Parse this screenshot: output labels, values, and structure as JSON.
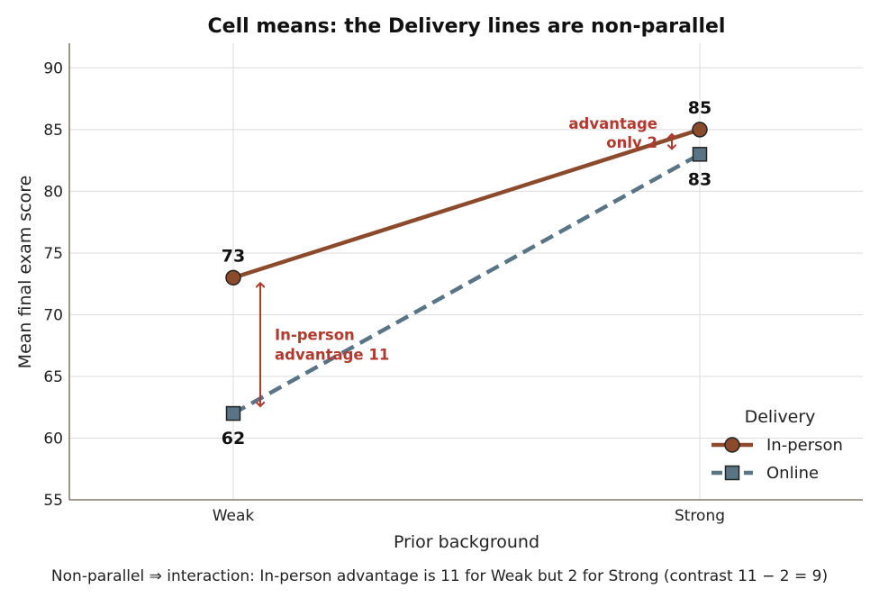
{
  "chart_data": {
    "type": "line",
    "title": "Cell means: the Delivery lines are non-parallel",
    "xlabel": "Prior background",
    "ylabel": "Mean final exam score",
    "categories": [
      "Weak",
      "Strong"
    ],
    "ylim": [
      55,
      92
    ],
    "yticks": [
      "55",
      "60",
      "65",
      "70",
      "75",
      "80",
      "85",
      "90"
    ],
    "grid": true,
    "legend": {
      "title": "Delivery",
      "placement": "lower-right"
    },
    "series": [
      {
        "name": "In-person",
        "values": [
          73,
          85
        ],
        "labels": [
          "73",
          "85"
        ],
        "color": "#8b4a2b",
        "marker": "circle",
        "style": "solid"
      },
      {
        "name": "Online",
        "values": [
          62,
          83
        ],
        "labels": [
          "62",
          "83"
        ],
        "color": "#587485",
        "marker": "square",
        "style": "dashed"
      }
    ],
    "annotations": [
      {
        "lines": [
          "In-person",
          "advantage 11"
        ],
        "category": "Weak",
        "from": 62,
        "to": 73,
        "color": "#b03a2e"
      },
      {
        "lines": [
          "advantage",
          "only 2"
        ],
        "category": "Strong",
        "from": 83,
        "to": 85,
        "color": "#b03a2e"
      }
    ],
    "caption": "Non-parallel ⇒ interaction: In-person advantage is 11 for Weak but 2 for Strong (contrast 11 − 2 = 9)"
  }
}
